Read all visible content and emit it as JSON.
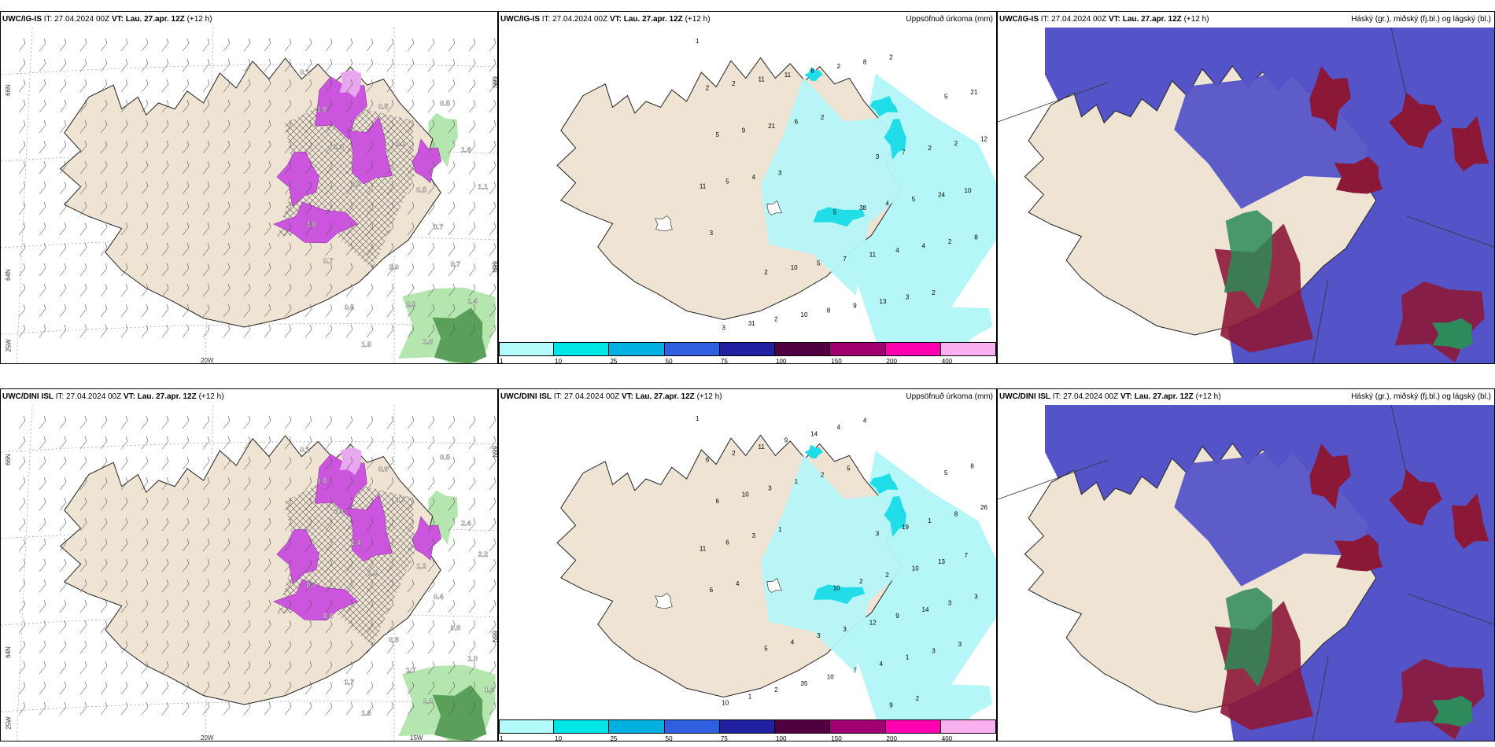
{
  "rows": [
    {
      "model": "UWC/IG-IS",
      "it": "IT: 27.04.2024 00Z",
      "vt_label": "VT:",
      "vt_value": "Lau. 27.apr. 12Z",
      "lead": "(+12 h)",
      "precip_labels": [
        "1",
        "3",
        "2",
        "5",
        "5",
        "3",
        "7",
        "10",
        "21",
        "38",
        "31",
        "2",
        "5",
        "2",
        "4",
        "2",
        "2",
        "7",
        "2",
        "5",
        "10",
        "12",
        "11",
        "11",
        "24",
        "8",
        "5",
        "4",
        "11",
        "10",
        "9",
        "9",
        "4",
        "8",
        "11",
        "13",
        "21",
        "2",
        "2",
        "5",
        "3",
        "6",
        "8",
        "8",
        "4",
        "2",
        "2",
        "3",
        "2",
        "3"
      ],
      "wind_labels": [
        "0.1",
        "0.5",
        "0.6",
        "1.6",
        "2.9",
        "1.0",
        "0.7",
        "1.8",
        "1.1",
        "2.2",
        "1.3",
        "0.7",
        "0.5",
        "3.6",
        "2.8",
        "1.8",
        "1.4",
        "1.1",
        "0.7",
        "0.5"
      ],
      "grid": {
        "lat_left": [
          "66N",
          "64N",
          "25W"
        ],
        "lon_bottom": "20W",
        "lat_right": [
          "66N",
          "66N"
        ]
      }
    },
    {
      "model": "UWC/DINI ISL",
      "it": "IT: 27.04.2024 00Z",
      "vt_label": "VT:",
      "vt_value": "Lau. 27.apr. 12Z",
      "lead": "(+12 h)",
      "precip_labels": [
        "1",
        "3",
        "5",
        "5",
        "10",
        "10",
        "19",
        "4",
        "8",
        "2",
        "1",
        "1",
        "3",
        "6",
        "2",
        "2",
        "8",
        "3",
        "2",
        "10",
        "35",
        "26",
        "12",
        "11",
        "13",
        "10",
        "6",
        "9",
        "9",
        "7",
        "7",
        "10",
        "14",
        "14",
        "11",
        "4",
        "3",
        "3",
        "4",
        "6",
        "1",
        "1",
        "3",
        "4",
        "3",
        "3",
        "2",
        "6",
        "9",
        "1",
        "3",
        "5",
        "4",
        "2"
      ],
      "wind_labels": [
        "0.1",
        "1.2",
        "1.7",
        "2.4",
        "0.8",
        "1.0",
        "0.4",
        "1.3",
        "2.2",
        "1.7",
        "0.9",
        "0.6",
        "0.9",
        "0.7",
        "2.3",
        "1.4",
        "1.0",
        "0.7",
        "0.8",
        "0.5",
        "1.0",
        "1.3"
      ],
      "grid": {
        "lat_left": [
          "66N",
          "64N",
          "25W"
        ],
        "lon_bottom": "20W",
        "lon_bottom2": "15W",
        "lat_right": [
          "66N",
          "66N"
        ]
      }
    }
  ],
  "precip_title": "Uppsöfnuð úrkoma (mm)",
  "cloud_title": "Háský (gr.), miðský (fj.bl.) og lágský (bl.)",
  "colorbar": {
    "ticks": [
      "1",
      "10",
      "25",
      "50",
      "75",
      "100",
      "150",
      "200",
      "400"
    ],
    "colors": [
      "#b3fafa",
      "#00e5e5",
      "#00b0e0",
      "#3060e0",
      "#2020a0",
      "#500040",
      "#a00070",
      "#ff00b0",
      "#f8b0f0"
    ]
  },
  "colors": {
    "land": "#efe3d3",
    "precip_light": "#b5f6f8",
    "precip_cyan": "#20dde8",
    "snow_purple": "#cc55dd",
    "snow_light": "#e8a8f0",
    "rain_green": "#5aa05a",
    "rain_light": "#b6e6b0",
    "cloud_high": "#5454c8",
    "cloud_mid": "#8c1838",
    "cloud_low": "#2e8a5a"
  }
}
